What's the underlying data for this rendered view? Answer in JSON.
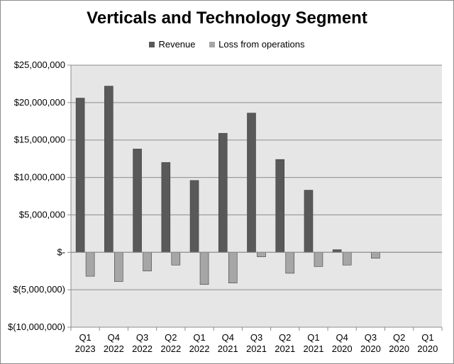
{
  "chart_data": {
    "type": "bar",
    "title": "Verticals and Technology Segment",
    "xlabel": "",
    "ylabel": "",
    "categories": [
      [
        "Q1",
        "2023"
      ],
      [
        "Q4",
        "2022"
      ],
      [
        "Q3",
        "2022"
      ],
      [
        "Q2",
        "2022"
      ],
      [
        "Q1",
        "2022"
      ],
      [
        "Q4",
        "2021"
      ],
      [
        "Q3",
        "2021"
      ],
      [
        "Q2",
        "2021"
      ],
      [
        "Q1",
        "2021"
      ],
      [
        "Q4",
        "2020"
      ],
      [
        "Q3",
        "2020"
      ],
      [
        "Q2",
        "2020"
      ],
      [
        "Q1",
        "2020"
      ]
    ],
    "series": [
      {
        "name": "Revenue",
        "color": "#595959",
        "values": [
          20600000,
          22200000,
          13800000,
          12000000,
          9600000,
          15900000,
          18600000,
          12400000,
          8300000,
          350000,
          0,
          0,
          0
        ]
      },
      {
        "name": "Loss from operations",
        "color": "#a6a6a6",
        "values": [
          -3200000,
          -3900000,
          -2500000,
          -1700000,
          -4300000,
          -4100000,
          -600000,
          -2800000,
          -1900000,
          -1700000,
          -800000,
          0,
          0
        ]
      }
    ],
    "ylim": [
      -10000000,
      25000000
    ],
    "yticks": [
      25000000,
      20000000,
      15000000,
      10000000,
      5000000,
      0,
      -5000000,
      -10000000
    ],
    "ytick_labels": [
      "$25,000,000",
      "$20,000,000",
      "$15,000,000",
      "$10,000,000",
      "$5,000,000",
      "$-",
      "$(5,000,000)",
      "$(10,000,000)"
    ],
    "grid": true,
    "legend_position": "top",
    "plot_background": "#e6e6e6"
  }
}
